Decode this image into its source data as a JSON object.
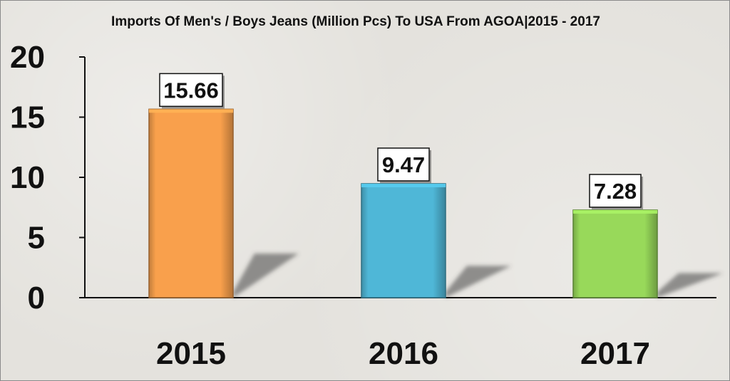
{
  "chart_data": {
    "type": "bar",
    "title": "Imports Of Men's / Boys Jeans (Million Pcs) To USA From AGOA|2015 - 2017",
    "categories": [
      "2015",
      "2016",
      "2017"
    ],
    "values": [
      15.66,
      9.47,
      7.28
    ],
    "data_labels": [
      "15.66",
      "9.47",
      "7.28"
    ],
    "colors": [
      "#f9a04c",
      "#4fb7d7",
      "#98d95a"
    ],
    "ylim": [
      0,
      20
    ],
    "yticks": [
      "0",
      "5",
      "10",
      "15",
      "20"
    ],
    "xlabel": "",
    "ylabel": "",
    "grid": false,
    "legend": "none"
  }
}
